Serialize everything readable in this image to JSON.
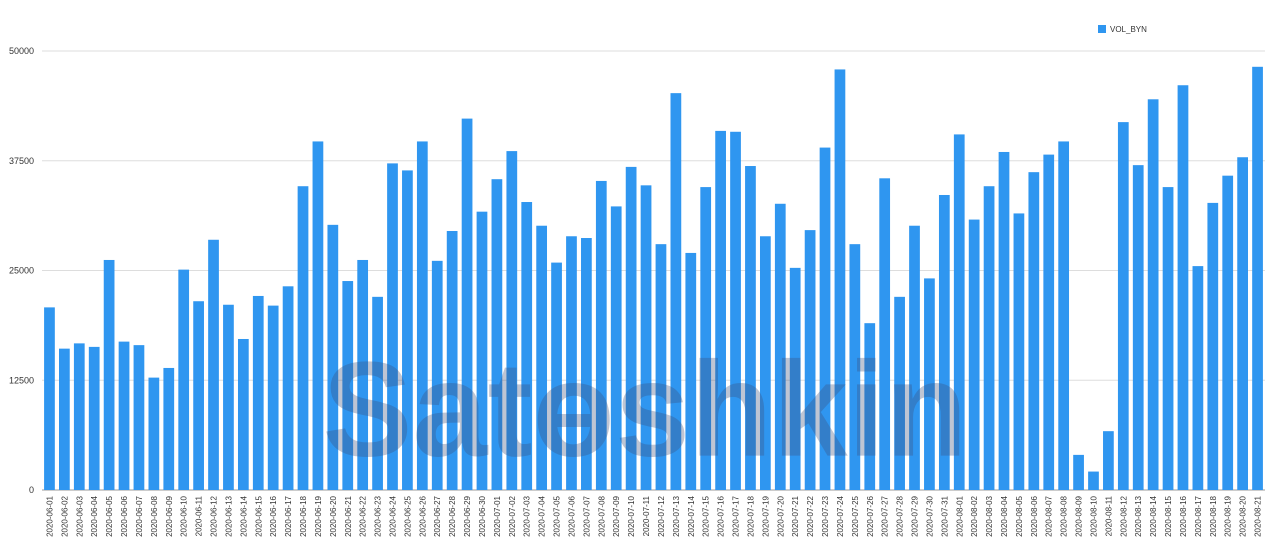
{
  "chart_data": {
    "type": "bar",
    "categories": [
      "2020-06-01",
      "2020-06-02",
      "2020-06-03",
      "2020-06-04",
      "2020-06-05",
      "2020-06-06",
      "2020-06-07",
      "2020-06-08",
      "2020-06-09",
      "2020-06-10",
      "2020-06-11",
      "2020-06-12",
      "2020-06-13",
      "2020-06-14",
      "2020-06-15",
      "2020-06-16",
      "2020-06-17",
      "2020-06-18",
      "2020-06-19",
      "2020-06-20",
      "2020-06-21",
      "2020-06-22",
      "2020-06-23",
      "2020-06-24",
      "2020-06-25",
      "2020-06-26",
      "2020-06-27",
      "2020-06-28",
      "2020-06-29",
      "2020-06-30",
      "2020-07-01",
      "2020-07-02",
      "2020-07-03",
      "2020-07-04",
      "2020-07-05",
      "2020-07-06",
      "2020-07-07",
      "2020-07-08",
      "2020-07-09",
      "2020-07-10",
      "2020-07-11",
      "2020-07-12",
      "2020-07-13",
      "2020-07-14",
      "2020-07-15",
      "2020-07-16",
      "2020-07-17",
      "2020-07-18",
      "2020-07-19",
      "2020-07-20",
      "2020-07-21",
      "2020-07-22",
      "2020-07-23",
      "2020-07-24",
      "2020-07-25",
      "2020-07-26",
      "2020-07-27",
      "2020-07-28",
      "2020-07-29",
      "2020-07-30",
      "2020-07-31",
      "2020-08-01",
      "2020-08-02",
      "2020-08-03",
      "2020-08-04",
      "2020-08-05",
      "2020-08-06",
      "2020-08-07",
      "2020-08-08",
      "2020-08-09",
      "2020-08-10",
      "2020-08-11",
      "2020-08-12",
      "2020-08-13",
      "2020-08-14",
      "2020-08-15",
      "2020-08-16",
      "2020-08-17",
      "2020-08-18",
      "2020-08-19",
      "2020-08-20",
      "2020-08-21"
    ],
    "series": [
      {
        "name": "VOL_BYN",
        "color": "#2f96f0",
        "values": [
          20800,
          16100,
          16700,
          16300,
          26200,
          16900,
          16500,
          12800,
          13900,
          25100,
          21500,
          28500,
          21100,
          17200,
          22100,
          21000,
          23200,
          34600,
          39700,
          30200,
          23800,
          26200,
          22000,
          37200,
          36400,
          39700,
          26100,
          29500,
          42300,
          31700,
          35400,
          38600,
          32800,
          30100,
          25900,
          28900,
          28700,
          35200,
          32300,
          36800,
          34700,
          28000,
          45200,
          27000,
          34500,
          40900,
          40800,
          36900,
          28900,
          32600,
          25300,
          29600,
          39000,
          47900,
          28000,
          19000,
          35500,
          22000,
          30100,
          24100,
          33600,
          40500,
          30800,
          34600,
          38500,
          31500,
          36200,
          38200,
          39700,
          4000,
          2100,
          6700,
          41900,
          37000,
          44500,
          34500,
          46100,
          25500,
          32700,
          35800,
          37900,
          48200
        ]
      }
    ],
    "ylim": [
      0,
      50000
    ],
    "yticks": [
      0,
      12500,
      25000,
      37500,
      50000
    ],
    "grid": true,
    "legend": "top-right"
  },
  "watermark": "Satɵshkin"
}
